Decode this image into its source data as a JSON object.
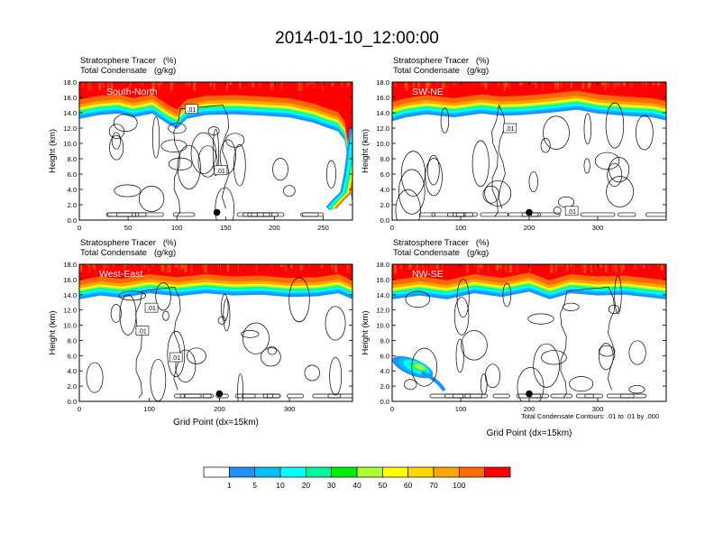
{
  "title": "2014-01-10_12:00:00",
  "colors": {
    "levels": [
      "#ffffff",
      "#1e90ff",
      "#00bfff",
      "#00ffff",
      "#00fa9a",
      "#00ee00",
      "#adff2f",
      "#ffff00",
      "#ffd700",
      "#ffa500",
      "#ff6a00",
      "#ff0000"
    ],
    "contour": "#000000"
  },
  "colorbar": {
    "labels": [
      "1",
      "5",
      "10",
      "20",
      "30",
      "40",
      "50",
      "60",
      "70",
      "100"
    ]
  },
  "footnote": "Total Condensate Contours: .01 to .01 by .000",
  "chart_data": [
    {
      "type": "heatmap",
      "id": "south-north",
      "label": "South-North",
      "header": [
        "Stratosphere Tracer   (%)",
        "Total Condensate   (g/kg)"
      ],
      "ylabel": "Height (km)",
      "xlabel": "",
      "xlim": [
        0,
        280
      ],
      "ylim": [
        0,
        18
      ],
      "xticks": [
        "0",
        "50",
        "100",
        "150",
        "200",
        "250"
      ],
      "xtick_values": [
        0,
        50,
        100,
        150,
        200,
        250
      ],
      "yticks": [
        "0.0",
        "2.0",
        "4.0",
        "6.0",
        "8.0",
        "10.0",
        "12.0",
        "14.0",
        "16.0",
        "18.0"
      ],
      "tropopause": [
        [
          0,
          14.8
        ],
        [
          20,
          15.3
        ],
        [
          40,
          15.5
        ],
        [
          55,
          15.0
        ],
        [
          75,
          15.5
        ],
        [
          90,
          14.2
        ],
        [
          100,
          13.5
        ],
        [
          110,
          14.8
        ],
        [
          130,
          15.3
        ],
        [
          160,
          15.4
        ],
        [
          190,
          15.2
        ],
        [
          215,
          15.0
        ],
        [
          240,
          14.3
        ],
        [
          255,
          13.6
        ],
        [
          265,
          13.2
        ],
        [
          272,
          12.0
        ],
        [
          276,
          9.0
        ],
        [
          278,
          5.0
        ],
        [
          280,
          4.0
        ]
      ],
      "contour_labels": [
        {
          "text": ".01",
          "x": 115,
          "y": 14.5
        },
        {
          "text": ".01",
          "x": 145,
          "y": 6.5
        }
      ],
      "marker": {
        "x": 141,
        "y": 1.0
      }
    },
    {
      "type": "heatmap",
      "id": "sw-ne",
      "label": "SW-NE",
      "header": [
        "Stratosphere Tracer   (%)",
        "Total Condensate   (g/kg)"
      ],
      "ylabel": "Height (km)",
      "xlabel": "",
      "xlim": [
        0,
        400
      ],
      "ylim": [
        0,
        18
      ],
      "xticks": [
        "0",
        "100",
        "200",
        "300"
      ],
      "xtick_values": [
        0,
        100,
        200,
        300
      ],
      "yticks": [
        "0.0",
        "2.0",
        "4.0",
        "6.0",
        "8.0",
        "10.0",
        "12.0",
        "14.0",
        "16.0",
        "18.0"
      ],
      "tropopause": [
        [
          0,
          14.5
        ],
        [
          20,
          15.0
        ],
        [
          50,
          15.4
        ],
        [
          90,
          15.0
        ],
        [
          130,
          15.5
        ],
        [
          160,
          15.2
        ],
        [
          190,
          15.3
        ],
        [
          230,
          15.6
        ],
        [
          270,
          16.0
        ],
        [
          300,
          15.5
        ],
        [
          340,
          15.2
        ],
        [
          380,
          15.0
        ],
        [
          400,
          14.6
        ]
      ],
      "contour_labels": [
        {
          "text": ".01",
          "x": 172,
          "y": 12.0
        },
        {
          "text": ".01",
          "x": 262,
          "y": 1.2
        }
      ],
      "marker": {
        "x": 200,
        "y": 1.0
      }
    },
    {
      "type": "heatmap",
      "id": "west-east",
      "label": "West-East",
      "header": [
        "Stratosphere Tracer   (%)",
        "Total Condensate   (g/kg)"
      ],
      "ylabel": "Height (km)",
      "xlabel": "Grid Point (dx=15km)",
      "xlim": [
        0,
        390
      ],
      "ylim": [
        0,
        18
      ],
      "xticks": [
        "0",
        "100",
        "200",
        "300"
      ],
      "xtick_values": [
        0,
        100,
        200,
        300
      ],
      "yticks": [
        "0.0",
        "2.0",
        "4.0",
        "6.0",
        "8.0",
        "10.0",
        "12.0",
        "14.0",
        "16.0",
        "18.0"
      ],
      "tropopause": [
        [
          0,
          15.0
        ],
        [
          30,
          15.5
        ],
        [
          60,
          15.2
        ],
        [
          100,
          15.8
        ],
        [
          140,
          15.4
        ],
        [
          180,
          15.8
        ],
        [
          220,
          15.5
        ],
        [
          260,
          15.6
        ],
        [
          300,
          15.3
        ],
        [
          340,
          15.4
        ],
        [
          370,
          15.8
        ],
        [
          390,
          15.0
        ]
      ],
      "contour_labels": [
        {
          "text": ".01",
          "x": 103,
          "y": 12.3
        },
        {
          "text": ".01",
          "x": 90,
          "y": 9.3
        },
        {
          "text": ".01",
          "x": 138,
          "y": 5.8
        }
      ],
      "marker": {
        "x": 200,
        "y": 1.0
      }
    },
    {
      "type": "heatmap",
      "id": "nw-se",
      "label": "NW-SE",
      "header": [
        "Stratosphere Tracer   (%)",
        "Total Condensate   (g/kg)"
      ],
      "ylabel": "Height (km)",
      "xlabel": "Grid Point (dx=15km)",
      "xlim": [
        0,
        400
      ],
      "ylim": [
        0,
        18
      ],
      "xticks": [
        "0",
        "100",
        "200",
        "300"
      ],
      "xtick_values": [
        0,
        100,
        200,
        300
      ],
      "yticks": [
        "0.0",
        "2.0",
        "4.0",
        "6.0",
        "8.0",
        "10.0",
        "12.0",
        "14.0",
        "16.0",
        "18.0"
      ],
      "tropopause": [
        [
          0,
          15.0
        ],
        [
          40,
          15.5
        ],
        [
          80,
          15.0
        ],
        [
          120,
          15.8
        ],
        [
          160,
          15.3
        ],
        [
          200,
          16.0
        ],
        [
          230,
          15.0
        ],
        [
          260,
          15.8
        ],
        [
          300,
          15.5
        ],
        [
          340,
          15.6
        ],
        [
          380,
          15.2
        ],
        [
          400,
          15.0
        ]
      ],
      "contour_labels": [],
      "blob": {
        "x": 30,
        "y": 4.5
      },
      "marker": {
        "x": 200,
        "y": 1.0
      }
    }
  ]
}
